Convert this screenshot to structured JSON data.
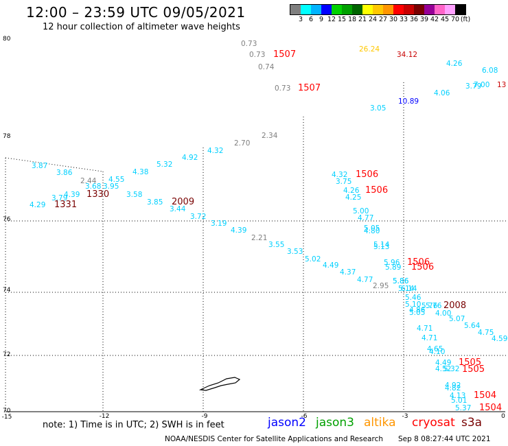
{
  "title": "12:00 – 23:59 UTC 09/05/2021",
  "subtitle": "12 hour collection of altimeter wave heights",
  "legend": {
    "colors": [
      "#7f7f7f",
      "#00ffff",
      "#00b4ff",
      "#0000ff",
      "#00d200",
      "#00a000",
      "#006400",
      "#ffff00",
      "#ffc800",
      "#ff9600",
      "#ff0000",
      "#c80000",
      "#780000",
      "#960096",
      "#ff64c8",
      "#ffa0ff",
      "#000000"
    ],
    "labels": [
      "3",
      "6",
      "9",
      "12",
      "15",
      "18",
      "21",
      "24",
      "27",
      "30",
      "33",
      "36",
      "39",
      "42",
      "45",
      "70",
      "(ft)"
    ]
  },
  "axes": {
    "y_labels": [
      "80",
      "78",
      "76",
      "74",
      "72",
      "70"
    ],
    "x_labels": [
      "-15",
      "-12",
      "-9",
      "-6",
      "-3",
      "0"
    ]
  },
  "observations": [
    {
      "t": "0.73",
      "c": "#7f7f7f"
    },
    {
      "t": "0.73",
      "c": "#7f7f7f"
    },
    {
      "t": "0.74",
      "c": "#7f7f7f"
    },
    {
      "t": "0.73",
      "c": "#7f7f7f"
    },
    {
      "t": "1507",
      "c": "#ff0000"
    },
    {
      "t": "1507",
      "c": "#ff0000"
    },
    {
      "t": "26.24",
      "c": "#ffc800"
    },
    {
      "t": "34.12",
      "c": "#c80000"
    },
    {
      "t": "4.26",
      "c": "#00d0ff"
    },
    {
      "t": "6.08",
      "c": "#00d0ff"
    },
    {
      "t": "3.79",
      "c": "#00d0ff"
    },
    {
      "t": "7.00",
      "c": "#00d0ff"
    },
    {
      "t": "13",
      "c": "#c80000"
    },
    {
      "t": "4.06",
      "c": "#00d0ff"
    },
    {
      "t": "10.89",
      "c": "#0000ff"
    },
    {
      "t": "3.05",
      "c": "#00d0ff"
    },
    {
      "t": "2.34",
      "c": "#7f7f7f"
    },
    {
      "t": "2.70",
      "c": "#7f7f7f"
    },
    {
      "t": "4.32",
      "c": "#00d0ff"
    },
    {
      "t": "4.92",
      "c": "#00d0ff"
    },
    {
      "t": "5.32",
      "c": "#00d0ff"
    },
    {
      "t": "4.38",
      "c": "#00d0ff"
    },
    {
      "t": "3.87",
      "c": "#00d0ff"
    },
    {
      "t": "3.86",
      "c": "#00d0ff"
    },
    {
      "t": "2.44",
      "c": "#7f7f7f"
    },
    {
      "t": "4.55",
      "c": "#00d0ff"
    },
    {
      "t": "3.68",
      "c": "#00d0ff"
    },
    {
      "t": "3.95",
      "c": "#00d0ff"
    },
    {
      "t": "1330",
      "c": "#780000"
    },
    {
      "t": "3.79",
      "c": "#00d0ff"
    },
    {
      "t": "4.39",
      "c": "#00d0ff"
    },
    {
      "t": "3.58",
      "c": "#00d0ff"
    },
    {
      "t": "1331",
      "c": "#780000"
    },
    {
      "t": "4.29",
      "c": "#00d0ff"
    },
    {
      "t": "3.85",
      "c": "#00d0ff"
    },
    {
      "t": "2009",
      "c": "#780000"
    },
    {
      "t": "3.44",
      "c": "#00d0ff"
    },
    {
      "t": "3.72",
      "c": "#00d0ff"
    },
    {
      "t": "3.19",
      "c": "#00d0ff"
    },
    {
      "t": "4.39",
      "c": "#00d0ff"
    },
    {
      "t": "2.21",
      "c": "#7f7f7f"
    },
    {
      "t": "3.55",
      "c": "#00d0ff"
    },
    {
      "t": "3.53",
      "c": "#00d0ff"
    },
    {
      "t": "5.02",
      "c": "#00d0ff"
    },
    {
      "t": "4.49",
      "c": "#00d0ff"
    },
    {
      "t": "4.37",
      "c": "#00d0ff"
    },
    {
      "t": "4.77",
      "c": "#00d0ff"
    },
    {
      "t": "2.95",
      "c": "#7f7f7f"
    },
    {
      "t": "5.76",
      "c": "#00d0ff"
    },
    {
      "t": "5.86",
      "c": "#00d0ff"
    },
    {
      "t": "5.14",
      "c": "#00d0ff"
    },
    {
      "t": "5.46",
      "c": "#00d0ff"
    },
    {
      "t": "5.10",
      "c": "#00d0ff"
    },
    {
      "t": "5.76",
      "c": "#00d0ff"
    },
    {
      "t": "4.86",
      "c": "#00d0ff"
    },
    {
      "t": "5.05",
      "c": "#00d0ff"
    },
    {
      "t": "2008",
      "c": "#780000"
    },
    {
      "t": "4.00",
      "c": "#00d0ff"
    },
    {
      "t": "5.07",
      "c": "#00d0ff"
    },
    {
      "t": "5.64",
      "c": "#00d0ff"
    },
    {
      "t": "4.75",
      "c": "#00d0ff"
    },
    {
      "t": "4.59",
      "c": "#00d0ff"
    },
    {
      "t": "4.32",
      "c": "#00d0ff"
    },
    {
      "t": "1506",
      "c": "#ff0000"
    },
    {
      "t": "3.75",
      "c": "#00d0ff"
    },
    {
      "t": "4.26",
      "c": "#00d0ff"
    },
    {
      "t": "1506",
      "c": "#ff0000"
    },
    {
      "t": "4.25",
      "c": "#00d0ff"
    },
    {
      "t": "5.00",
      "c": "#00d0ff"
    },
    {
      "t": "4.77",
      "c": "#00d0ff"
    },
    {
      "t": "5.05",
      "c": "#00d0ff"
    },
    {
      "t": "4.80",
      "c": "#00d0ff"
    },
    {
      "t": "5.14",
      "c": "#00d0ff"
    },
    {
      "t": "5.13",
      "c": "#00d0ff"
    },
    {
      "t": "5.96",
      "c": "#00d0ff"
    },
    {
      "t": "1506",
      "c": "#ff0000"
    },
    {
      "t": "5.89",
      "c": "#00d0ff"
    },
    {
      "t": "1506",
      "c": "#ff0000"
    },
    {
      "t": "5.86",
      "c": "#00d0ff"
    },
    {
      "t": "6.14",
      "c": "#00d0ff"
    },
    {
      "t": "4.71",
      "c": "#00d0ff"
    },
    {
      "t": "4.71",
      "c": "#00d0ff"
    },
    {
      "t": "4.65",
      "c": "#00d0ff"
    },
    {
      "t": "4.10",
      "c": "#00d0ff"
    },
    {
      "t": "4.49",
      "c": "#00d0ff"
    },
    {
      "t": "1505",
      "c": "#ff0000"
    },
    {
      "t": "4.52",
      "c": "#00d0ff"
    },
    {
      "t": "1505",
      "c": "#ff0000"
    },
    {
      "t": "5.32",
      "c": "#00d0ff"
    },
    {
      "t": "4.92",
      "c": "#00d0ff"
    },
    {
      "t": "4.82",
      "c": "#00d0ff"
    },
    {
      "t": "4.13",
      "c": "#00d0ff"
    },
    {
      "t": "1504",
      "c": "#ff0000"
    },
    {
      "t": "5.01",
      "c": "#00d0ff"
    },
    {
      "t": "5.37",
      "c": "#00d0ff"
    },
    {
      "t": "1504",
      "c": "#ff0000"
    }
  ],
  "note": "note: 1) Time is in UTC; 2) SWH is in feet",
  "satellites": [
    {
      "name": "jason2",
      "color": "#0000ff"
    },
    {
      "name": "jason3",
      "color": "#00a000"
    },
    {
      "name": "altika",
      "color": "#ff9600"
    },
    {
      "name": "cryosat",
      "color": "#ff0000"
    },
    {
      "name": "s3a",
      "color": "#780000"
    }
  ],
  "credit": "NOAA/NESDIS Center for Satellite Applications and Research",
  "generated": "Sep  8 08:27:44 UTC 2021"
}
